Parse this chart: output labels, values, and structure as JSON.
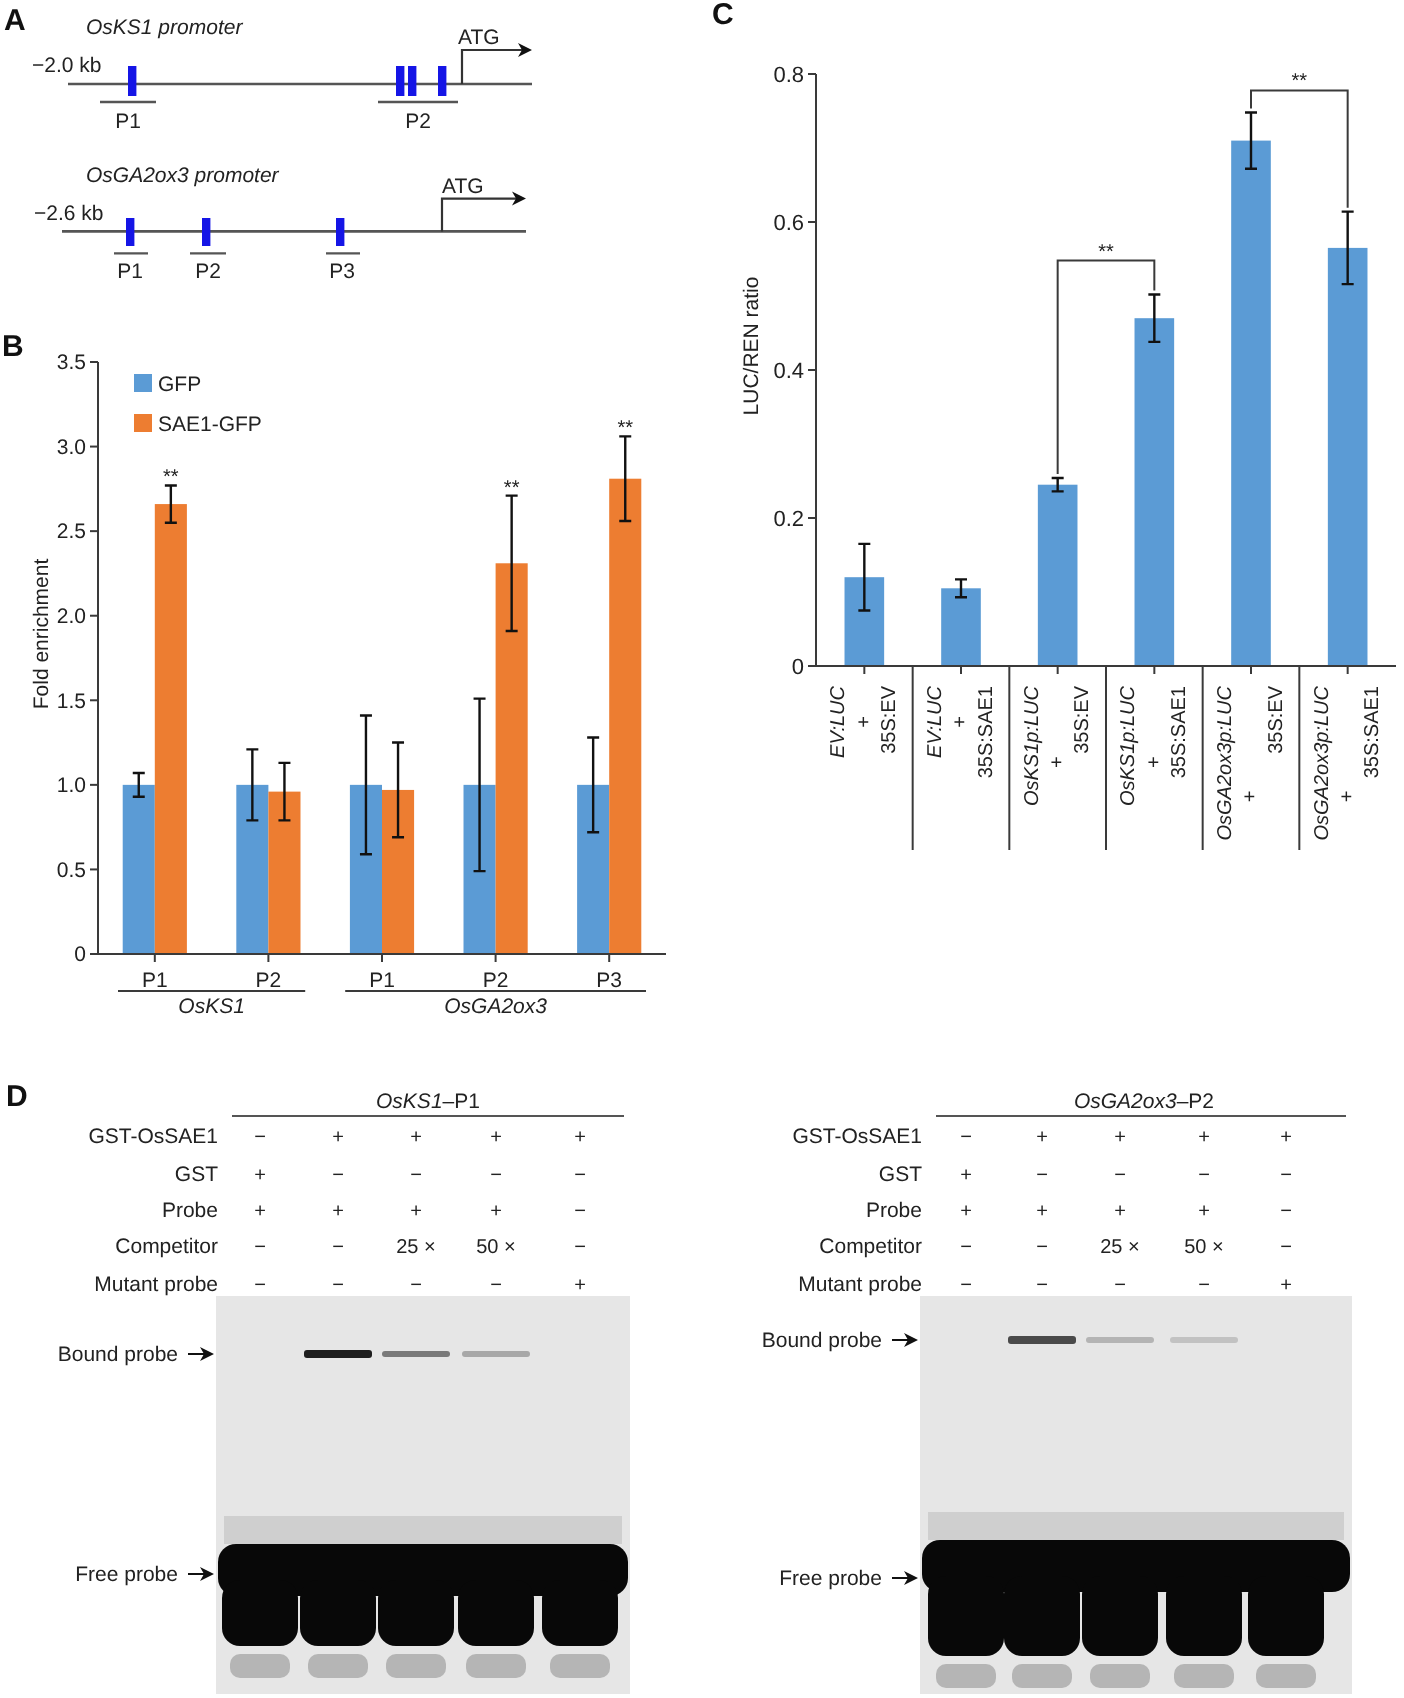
{
  "chart_data": [
    {
      "type": "other",
      "title": "A",
      "annotations": [
        "OsKS1 promoter",
        "−2.0 kb",
        "ATG",
        "P1",
        "P2",
        "OsGA2ox3 promoter",
        "−2.6 kb",
        "ATG",
        "P1",
        "P2",
        "P3"
      ]
    },
    {
      "type": "bar",
      "title": "B",
      "ylabel": "Fold enrichment",
      "categories": [
        "P1",
        "P2",
        "P1",
        "P2",
        "P3"
      ],
      "series": [
        {
          "name": "GFP",
          "color": "#5b9bd5",
          "values": [
            1,
            1,
            1,
            1,
            1
          ],
          "errors": [
            0.07,
            0.21,
            0.41,
            0.51,
            0.28
          ]
        },
        {
          "name": "SAE1-GFP",
          "color": "#ed7d31",
          "values": [
            2.66,
            0.96,
            0.97,
            2.31,
            2.81
          ],
          "errors": [
            0.11,
            0.17,
            0.28,
            0.4,
            0.25
          ]
        }
      ],
      "ylim": [
        0,
        3.5
      ],
      "yticks": [
        0,
        0.5,
        {
          "value": 1,
          "label": "1.0"
        },
        1.5,
        {
          "value": 2,
          "label": "2.0"
        },
        2.5,
        {
          "value": 3,
          "label": "3.0"
        },
        3.5
      ],
      "legend": "top left",
      "annotations": [
        "OsKS1",
        "OsGA2ox3",
        "**",
        "**",
        "**"
      ]
    },
    {
      "type": "bar",
      "title": "C",
      "ylabel": "LUC/REN ratio",
      "categories": [
        "EV:LUC + 35S:EV",
        "EV:LUC + 35S:SAE1",
        "OsKS1p:LUC + 35S:EV",
        "OsKS1p:LUC + 35S:SAE1",
        "OsGA2ox3p:LUC + 35S:EV",
        "OsGA2ox3p:LUC + 35S:SAE1"
      ],
      "values": [
        0.12,
        0.105,
        0.245,
        0.47,
        0.71,
        0.565
      ],
      "color": "#5b9bd5",
      "errors": [
        0.045,
        0.012,
        0.009,
        0.032,
        0.038,
        0.049
      ],
      "ylim": [
        0,
        0.8
      ],
      "yticks": [
        0,
        0.2,
        0.4,
        0.6,
        0.8
      ],
      "annotations": [
        "**",
        "**"
      ]
    },
    {
      "type": "other",
      "title": "D",
      "subtitle": "OsKS1–P1",
      "annotations": [
        "GST-OsSAE1",
        "GST",
        "Probe",
        "Competitor",
        "Mutant probe",
        "−",
        "+",
        "+",
        "+",
        "+",
        "+",
        "−",
        "−",
        "−",
        "−",
        "+",
        "+",
        "+",
        "+",
        "−",
        "−",
        "−",
        "25 ×",
        "50 ×",
        "−",
        "−",
        "−",
        "−",
        "−",
        "+",
        "Bound probe",
        "Free probe"
      ]
    },
    {
      "type": "other",
      "subtitle": "OsGA2ox3–P2",
      "annotations": [
        "GST-OsSAE1",
        "GST",
        "Probe",
        "Competitor",
        "Mutant probe",
        "−",
        "+",
        "+",
        "+",
        "+",
        "+",
        "−",
        "−",
        "−",
        "−",
        "+",
        "+",
        "+",
        "+",
        "−",
        "−",
        "−",
        "25 ×",
        "50 ×",
        "−",
        "−",
        "−",
        "−",
        "−",
        "+",
        "Bound probe",
        "Free probe"
      ]
    }
  ]
}
